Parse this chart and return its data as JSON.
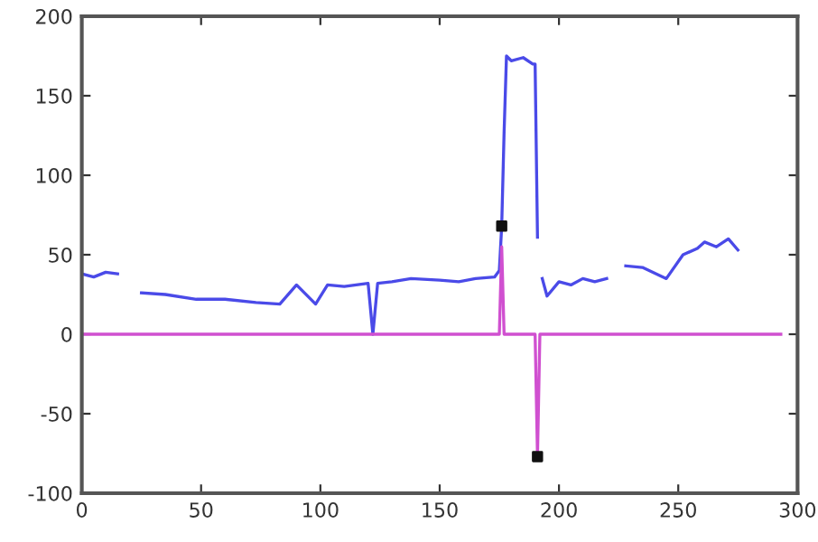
{
  "chart_data": {
    "type": "line",
    "xlim": [
      0,
      300
    ],
    "ylim": [
      -100,
      200
    ],
    "xticks": [
      0,
      50,
      100,
      150,
      200,
      250,
      300
    ],
    "yticks": [
      -100,
      -50,
      0,
      50,
      100,
      150,
      200
    ],
    "grid": false,
    "legend": false,
    "marker": "none",
    "line_style": "solid",
    "series": [
      {
        "color": "#4a4ae8",
        "x": [
          0,
          5,
          10,
          15,
          20,
          25,
          35,
          48,
          60,
          73,
          83,
          90,
          98,
          103,
          110,
          120,
          122,
          124,
          130,
          138,
          150,
          158,
          165,
          173,
          175,
          176,
          177,
          178,
          180,
          185,
          189,
          190,
          191,
          192,
          193,
          195,
          200,
          205,
          210,
          215,
          220,
          224,
          228,
          235,
          245,
          252,
          258,
          261,
          266,
          271,
          275
        ],
        "values": [
          38,
          36,
          39,
          38,
          null,
          26,
          25,
          22,
          22,
          20,
          19,
          31,
          19,
          31,
          30,
          32,
          0,
          32,
          33,
          35,
          34,
          33,
          35,
          36,
          40,
          68,
          127,
          175,
          172,
          174,
          170,
          170,
          61,
          null,
          35,
          24,
          33,
          31,
          35,
          33,
          35,
          null,
          43,
          42,
          35,
          50,
          54,
          58,
          55,
          60,
          53
        ]
      },
      {
        "color": "#d050d0",
        "x": [
          0,
          175,
          176,
          177,
          190,
          191,
          192,
          293
        ],
        "values": [
          0,
          0,
          55,
          0,
          0,
          -77,
          0,
          0
        ]
      },
      {
        "type": "scatter",
        "marker": "square",
        "color": "#111111",
        "x": [
          176,
          191
        ],
        "values": [
          68,
          -77
        ]
      }
    ]
  }
}
